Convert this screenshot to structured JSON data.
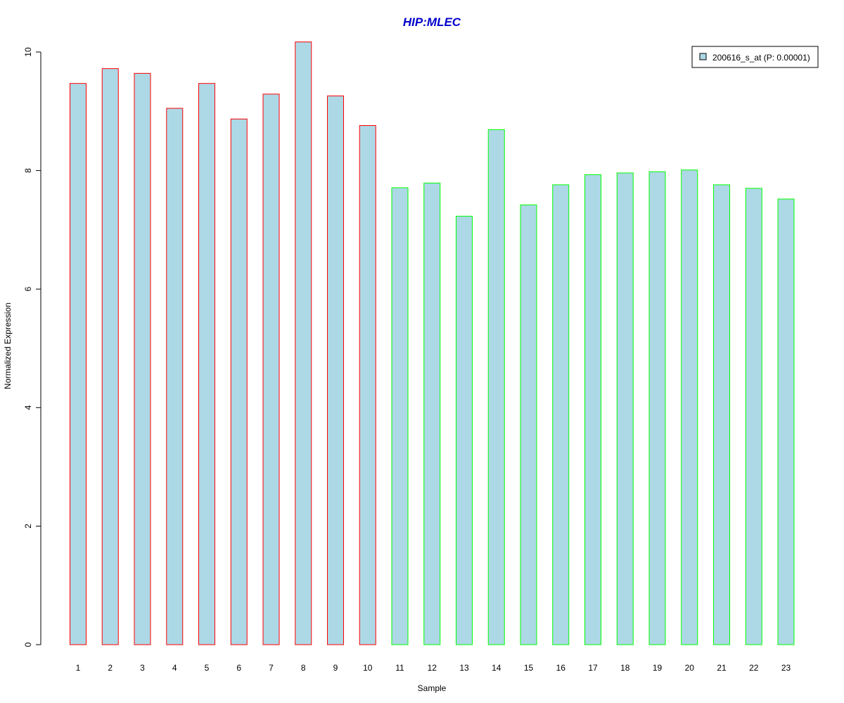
{
  "chart_data": {
    "type": "bar",
    "title": "HIP:MLEC",
    "xlabel": "Sample",
    "ylabel": "Normalized Expression",
    "categories": [
      "1",
      "2",
      "3",
      "4",
      "5",
      "6",
      "7",
      "8",
      "9",
      "10",
      "11",
      "12",
      "13",
      "14",
      "15",
      "16",
      "17",
      "18",
      "19",
      "20",
      "21",
      "22",
      "23"
    ],
    "series": [
      {
        "name": "200616_s_at (P: 0.00001)",
        "values": [
          9.47,
          9.72,
          9.64,
          9.05,
          9.47,
          8.87,
          9.29,
          10.17,
          9.26,
          8.76,
          7.71,
          7.79,
          7.23,
          8.69,
          7.42,
          7.76,
          7.93,
          7.96,
          7.98,
          8.01,
          7.76,
          7.7,
          7.52
        ]
      }
    ],
    "yticks": [
      "0",
      "2",
      "4",
      "6",
      "8",
      "10"
    ],
    "ylim": [
      0,
      10.4
    ],
    "legend_position": "top-right",
    "grid": false,
    "colors": {
      "bar_fill": "#add8e6",
      "group1_border": "#ff0000",
      "group2_border": "#00ff00",
      "group1_samples": 10,
      "title": "#0000cc"
    }
  }
}
